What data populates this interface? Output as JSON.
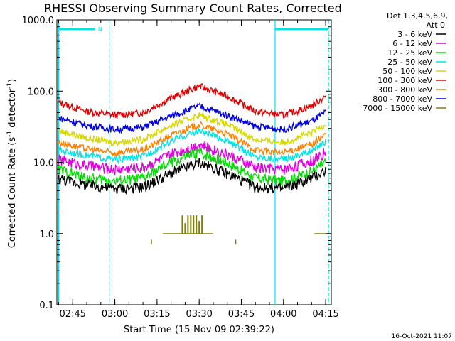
{
  "chart_data": {
    "type": "line",
    "title": "RHESSI Observing Summary Count Rates, Corrected",
    "xlabel": "Start Time (15-Nov-09 02:39:22)",
    "ylabel_main": "Corrected Count Rate (s",
    "ylabel_sup1": "-1",
    "ylabel_mid": " detector",
    "ylabel_sup2": "-1",
    "ylabel_end": ")",
    "y_scale": "log",
    "ylim": [
      0.1,
      1000
    ],
    "xlim": [
      "02:39:22",
      "04:17:00"
    ],
    "x_ticks": [
      "02:45",
      "03:00",
      "03:15",
      "03:30",
      "03:45",
      "04:00",
      "04:15"
    ],
    "y_ticks": [
      "1000.0",
      "100.0",
      "10.0",
      "1.0",
      "0.1"
    ],
    "legend": {
      "placement": "right",
      "header1": "Det 1,3,4,5,6,9,",
      "header2": "Att 0",
      "entries": [
        {
          "label": "3 - 6 keV",
          "color": "#000000"
        },
        {
          "label": "6 - 12 keV",
          "color": "#e000e0"
        },
        {
          "label": "12 - 25 keV",
          "color": "#00e000"
        },
        {
          "label": "25 - 50 keV",
          "color": "#00e6e6"
        },
        {
          "label": "50 - 100 keV",
          "color": "#d8d800"
        },
        {
          "label": "100 - 300 keV",
          "color": "#e00000"
        },
        {
          "label": "300 - 800 keV",
          "color": "#ff8000"
        },
        {
          "label": "800 - 7000 keV",
          "color": "#0000e6"
        },
        {
          "label": "7000 - 15000 keV",
          "color": "#808000"
        }
      ]
    },
    "series": [
      {
        "name": "100 - 300 keV",
        "color": "#e00000",
        "points": [
          [
            "02:40",
            70
          ],
          [
            "02:50",
            52
          ],
          [
            "03:00",
            46
          ],
          [
            "03:10",
            50
          ],
          [
            "03:20",
            80
          ],
          [
            "03:30",
            118
          ],
          [
            "03:40",
            85
          ],
          [
            "03:50",
            52
          ],
          [
            "04:00",
            46
          ],
          [
            "04:10",
            62
          ],
          [
            "04:15",
            85
          ]
        ]
      },
      {
        "name": "800 - 7000 keV",
        "color": "#0000e6",
        "points": [
          [
            "02:40",
            42
          ],
          [
            "02:50",
            33
          ],
          [
            "03:00",
            29
          ],
          [
            "03:10",
            31
          ],
          [
            "03:20",
            45
          ],
          [
            "03:30",
            62
          ],
          [
            "03:40",
            46
          ],
          [
            "03:50",
            32
          ],
          [
            "04:00",
            29
          ],
          [
            "04:10",
            38
          ],
          [
            "04:15",
            50
          ]
        ]
      },
      {
        "name": "50 - 100 keV",
        "color": "#d8d800",
        "points": [
          [
            "02:40",
            28
          ],
          [
            "02:50",
            22
          ],
          [
            "03:00",
            19
          ],
          [
            "03:10",
            21
          ],
          [
            "03:20",
            33
          ],
          [
            "03:30",
            46
          ],
          [
            "03:40",
            34
          ],
          [
            "03:50",
            21
          ],
          [
            "04:00",
            19
          ],
          [
            "04:10",
            26
          ],
          [
            "04:15",
            35
          ]
        ]
      },
      {
        "name": "300 - 800 keV",
        "color": "#ff8000",
        "points": [
          [
            "02:40",
            19
          ],
          [
            "02:50",
            15.5
          ],
          [
            "03:00",
            13.5
          ],
          [
            "03:10",
            15
          ],
          [
            "03:20",
            24
          ],
          [
            "03:30",
            34
          ],
          [
            "03:40",
            25
          ],
          [
            "03:50",
            15
          ],
          [
            "04:00",
            13.5
          ],
          [
            "04:10",
            18
          ],
          [
            "04:15",
            25
          ]
        ]
      },
      {
        "name": "25 - 50 keV",
        "color": "#00e6e6",
        "points": [
          [
            "02:40",
            15
          ],
          [
            "02:50",
            12.5
          ],
          [
            "03:00",
            11
          ],
          [
            "03:10",
            12
          ],
          [
            "03:20",
            20
          ],
          [
            "03:30",
            28
          ],
          [
            "03:40",
            20
          ],
          [
            "03:50",
            12
          ],
          [
            "04:00",
            11
          ],
          [
            "04:10",
            14.5
          ],
          [
            "04:15",
            20
          ]
        ]
      },
      {
        "name": "6 - 12 keV",
        "color": "#e000e0",
        "points": [
          [
            "02:40",
            11
          ],
          [
            "02:50",
            9
          ],
          [
            "03:00",
            8
          ],
          [
            "03:10",
            8.5
          ],
          [
            "03:20",
            13
          ],
          [
            "03:30",
            18
          ],
          [
            "03:40",
            13
          ],
          [
            "03:50",
            8.5
          ],
          [
            "04:00",
            8
          ],
          [
            "04:10",
            10.5
          ],
          [
            "04:15",
            14
          ]
        ]
      },
      {
        "name": "12 - 25 keV",
        "color": "#00e000",
        "points": [
          [
            "02:40",
            8
          ],
          [
            "02:50",
            6
          ],
          [
            "03:00",
            5.5
          ],
          [
            "03:10",
            6
          ],
          [
            "03:20",
            10
          ],
          [
            "03:30",
            14
          ],
          [
            "03:40",
            10
          ],
          [
            "03:50",
            6
          ],
          [
            "04:00",
            5.5
          ],
          [
            "04:10",
            7.5
          ],
          [
            "04:15",
            10
          ]
        ]
      },
      {
        "name": "3 - 6 keV",
        "color": "#000000",
        "points": [
          [
            "02:40",
            6
          ],
          [
            "02:50",
            4.8
          ],
          [
            "03:00",
            4.3
          ],
          [
            "03:10",
            4.5
          ],
          [
            "03:20",
            7
          ],
          [
            "03:30",
            10
          ],
          [
            "03:40",
            7
          ],
          [
            "03:50",
            4.5
          ],
          [
            "04:00",
            4.3
          ],
          [
            "04:10",
            6
          ],
          [
            "04:15",
            7.8
          ]
        ]
      }
    ],
    "bursts_7000_15000": [
      [
        "03:24",
        1.8
      ],
      [
        "03:25",
        1.4
      ],
      [
        "03:26",
        1.8
      ],
      [
        "03:27",
        1.8
      ],
      [
        "03:28",
        1.8
      ],
      [
        "03:29",
        1.8
      ],
      [
        "03:30",
        1.5
      ],
      [
        "03:31",
        1.8
      ]
    ],
    "flag_segments": [
      [
        "02:40",
        "02:53"
      ],
      [
        "03:57",
        "04:16"
      ]
    ],
    "flag_label": "N",
    "boundary_times": [
      "02:40",
      "02:58",
      "03:57",
      "04:16"
    ],
    "footer_date": "16-Oct-2021 11:07"
  }
}
